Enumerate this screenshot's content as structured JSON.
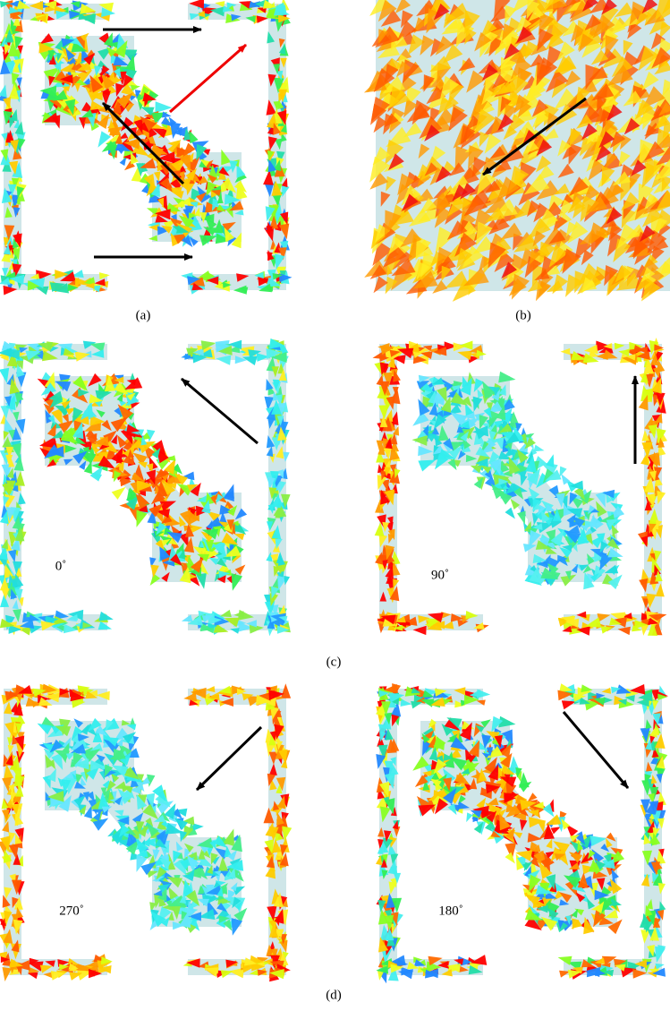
{
  "captions": [
    "(a)",
    "(b)",
    "(c)",
    "(d)"
  ],
  "angle_labels": [
    "0˚",
    "90˚",
    "270˚",
    "180˚"
  ]
}
